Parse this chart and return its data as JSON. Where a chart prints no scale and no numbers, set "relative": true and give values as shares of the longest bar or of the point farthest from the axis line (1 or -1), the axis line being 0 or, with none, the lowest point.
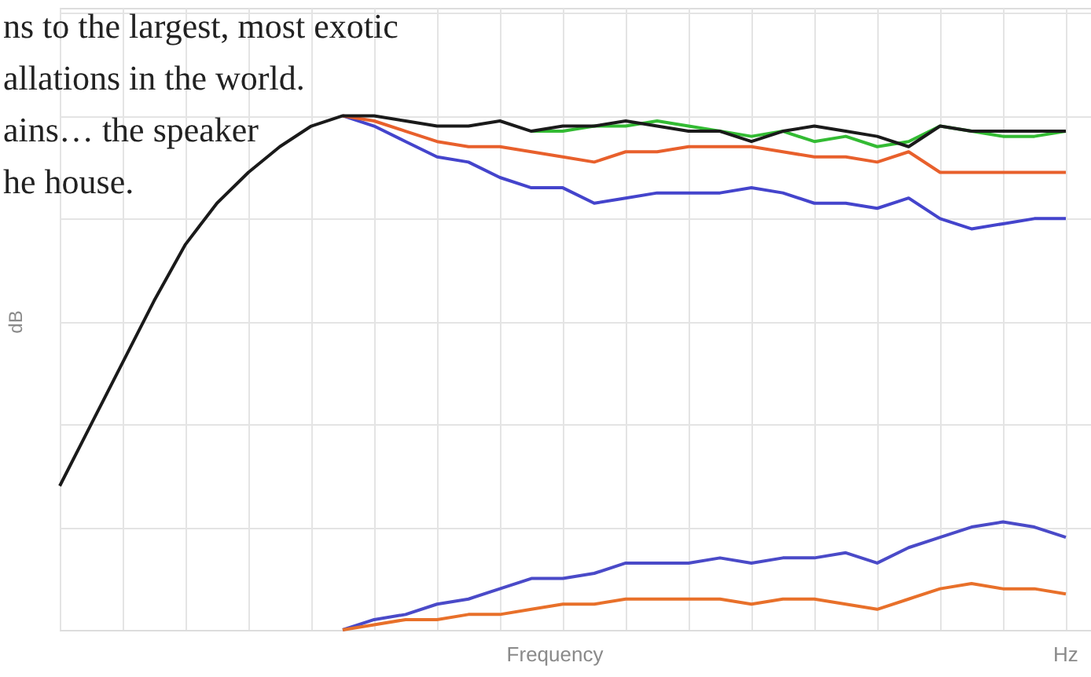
{
  "chart_data": {
    "type": "line",
    "relative": true,
    "xlabel": "Frequency",
    "ylabel": "dB",
    "grid": true,
    "annotations": [
      "ns to the largest, most exotic",
      "allations in the world.",
      "ains… the speaker",
      "he house.",
      "Hz"
    ],
    "categories": [
      null,
      null,
      null,
      null,
      null,
      null,
      null,
      null,
      null,
      null,
      null,
      null,
      null,
      null,
      null,
      null,
      null,
      null,
      null,
      null,
      null,
      null,
      null,
      null,
      null,
      null,
      null,
      null,
      null,
      null,
      null,
      null,
      null
    ],
    "series": [
      {
        "color": "#4444cc",
        "values": [
          null,
          null,
          null,
          null,
          null,
          null,
          null,
          null,
          null,
          1.0,
          0.98,
          0.95,
          0.92,
          0.91,
          0.88,
          0.86,
          0.86,
          0.83,
          0.84,
          0.85,
          0.85,
          0.85,
          0.86,
          0.85,
          0.83,
          0.83,
          0.82,
          0.84,
          0.8,
          0.78,
          0.79,
          0.8,
          0.8
        ]
      },
      {
        "color": "#e8602c",
        "values": [
          null,
          null,
          null,
          null,
          null,
          null,
          null,
          null,
          null,
          1.0,
          0.99,
          0.97,
          0.95,
          0.94,
          0.94,
          0.93,
          0.92,
          0.91,
          0.93,
          0.93,
          0.94,
          0.94,
          0.94,
          0.93,
          0.92,
          0.92,
          0.91,
          0.93,
          0.89,
          0.89,
          0.89,
          0.89,
          0.89
        ]
      },
      {
        "color": "#33bb33",
        "values": [
          null,
          null,
          null,
          null,
          null,
          null,
          null,
          null,
          null,
          null,
          null,
          null,
          null,
          null,
          null,
          0.97,
          0.97,
          0.98,
          0.98,
          0.99,
          0.98,
          0.97,
          0.96,
          0.97,
          0.95,
          0.96,
          0.94,
          0.95,
          0.98,
          0.97,
          0.96,
          0.96,
          0.97
        ]
      },
      {
        "color": "#1a1a1a",
        "values": [
          0.28,
          0.4,
          0.52,
          0.64,
          0.75,
          0.83,
          0.89,
          0.94,
          0.98,
          1.0,
          1.0,
          0.99,
          0.98,
          0.98,
          0.99,
          0.97,
          0.98,
          0.98,
          0.99,
          0.98,
          0.97,
          0.97,
          0.95,
          0.97,
          0.98,
          0.97,
          0.96,
          0.94,
          0.98,
          0.97,
          0.97,
          0.97,
          0.97
        ]
      },
      {
        "color": "#4a4ac8",
        "values": [
          null,
          null,
          null,
          null,
          null,
          null,
          null,
          null,
          null,
          0.0,
          0.02,
          0.03,
          0.05,
          0.06,
          0.08,
          0.1,
          0.1,
          0.11,
          0.13,
          0.13,
          0.13,
          0.14,
          0.13,
          0.14,
          0.14,
          0.15,
          0.13,
          0.16,
          0.18,
          0.2,
          0.21,
          0.2,
          0.18
        ]
      },
      {
        "color": "#e8702a",
        "values": [
          null,
          null,
          null,
          null,
          null,
          null,
          null,
          null,
          null,
          0.0,
          0.01,
          0.02,
          0.02,
          0.03,
          0.03,
          0.04,
          0.05,
          0.05,
          0.06,
          0.06,
          0.06,
          0.06,
          0.05,
          0.06,
          0.06,
          0.05,
          0.04,
          0.06,
          0.08,
          0.09,
          0.08,
          0.08,
          0.07
        ]
      }
    ]
  }
}
